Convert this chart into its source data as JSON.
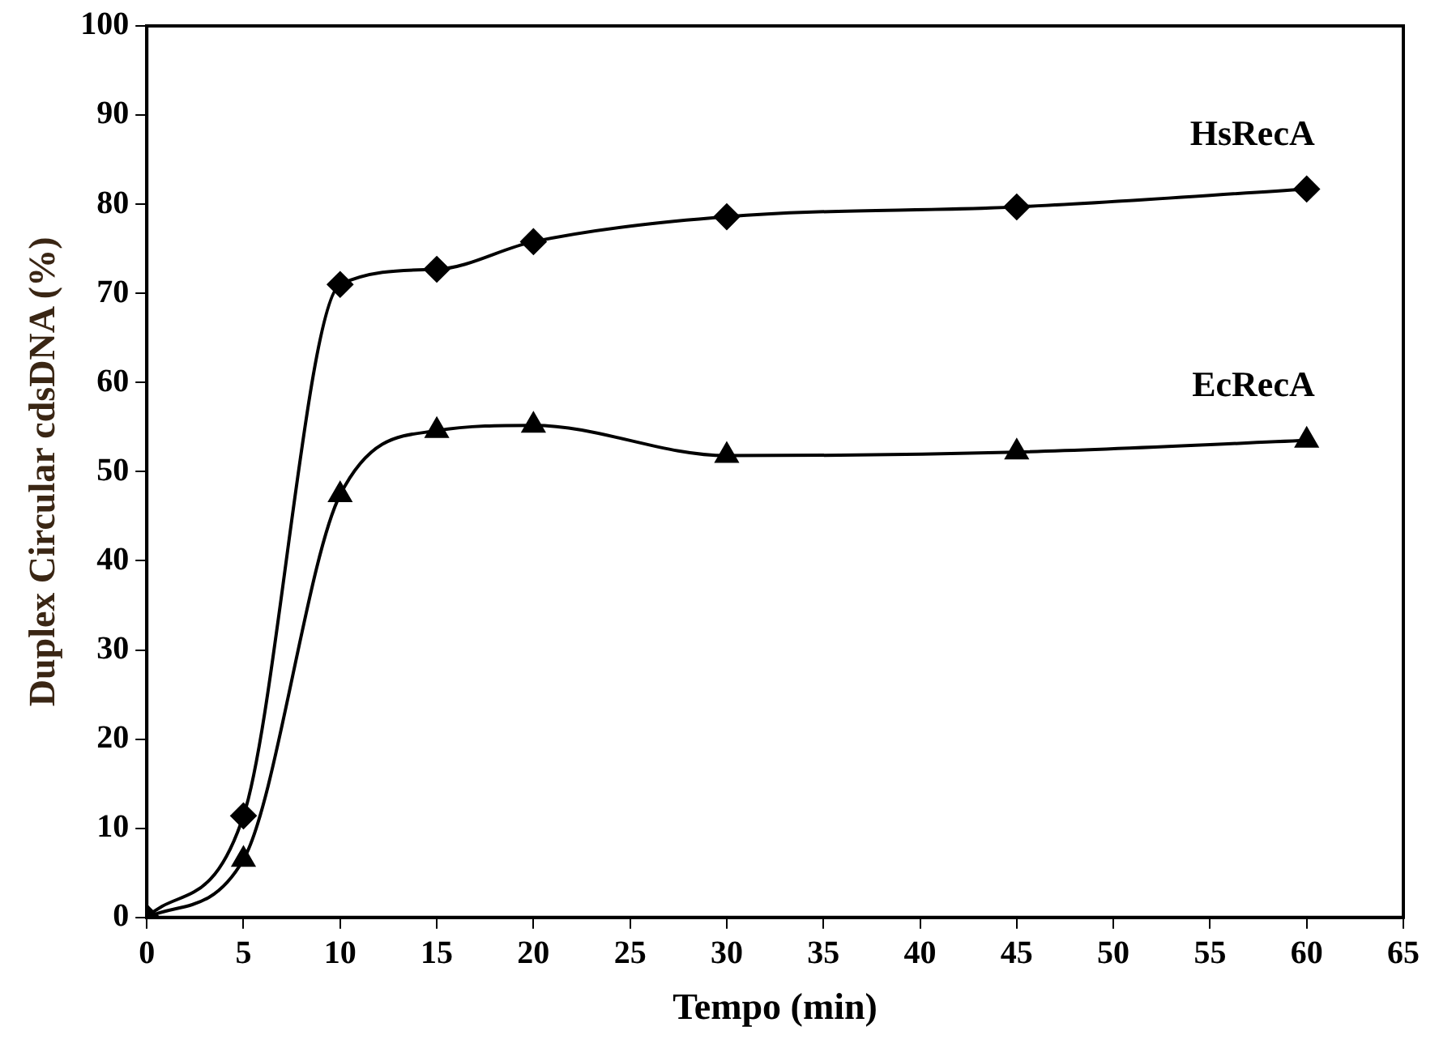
{
  "chart_data": {
    "type": "line",
    "xlabel": "Tempo (min)",
    "ylabel": "Duplex Circular cdsDNA (%)",
    "x": [
      0,
      5,
      10,
      15,
      20,
      30,
      45,
      60
    ],
    "series": [
      {
        "name": "HsRecA",
        "color": "#000000",
        "marker": "diamond",
        "values": [
          0,
          11.4,
          71,
          72.7,
          75.8,
          78.6,
          79.7,
          81.7
        ]
      },
      {
        "name": "EcRecA",
        "color": "#000000",
        "marker": "triangle",
        "values": [
          0,
          6.5,
          47.4,
          54.6,
          55.2,
          51.8,
          52.2,
          53.5
        ]
      }
    ],
    "xlim": [
      0,
      65
    ],
    "xticks": [
      0,
      5,
      10,
      15,
      20,
      25,
      30,
      35,
      40,
      45,
      50,
      55,
      60,
      65
    ],
    "ylim": [
      0,
      100
    ],
    "yticks": [
      0,
      10,
      20,
      30,
      40,
      50,
      60,
      70,
      80,
      90,
      100
    ],
    "grid": false,
    "legend": false
  }
}
